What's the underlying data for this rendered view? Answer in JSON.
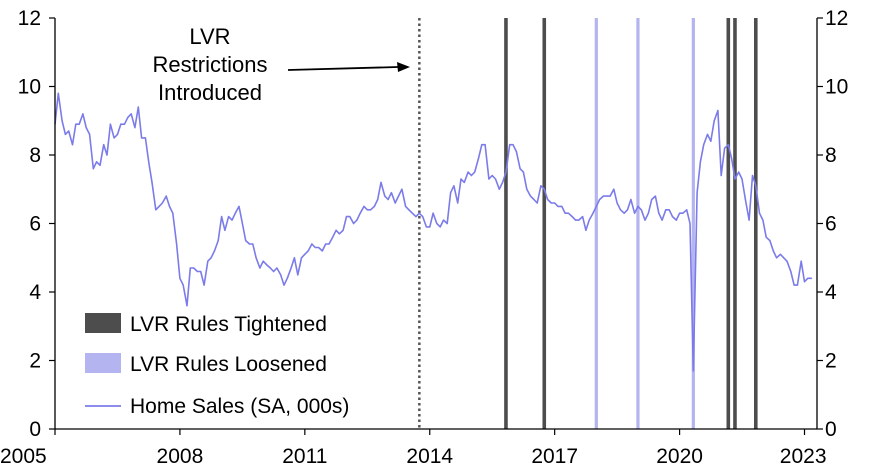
{
  "chart_data": {
    "type": "line",
    "title": "",
    "xlabel": "",
    "ylabel": "",
    "xlim": [
      2005,
      2023.3
    ],
    "ylim": [
      0,
      12
    ],
    "x_ticks": [
      2005,
      2008,
      2011,
      2014,
      2017,
      2020,
      2023
    ],
    "x_tick_labels": [
      "2005",
      "2008",
      "2011",
      "2014",
      "2017",
      "2020",
      "2023"
    ],
    "y_ticks": [
      0,
      2,
      4,
      6,
      8,
      10,
      12
    ],
    "y_tick_labels": [
      "0",
      "2",
      "4",
      "6",
      "8",
      "10",
      "12"
    ],
    "y2_ticks": [
      0,
      2,
      4,
      6,
      8,
      10,
      12
    ],
    "y2_tick_labels": [
      "0",
      "2",
      "4",
      "6",
      "8",
      "10",
      "12"
    ],
    "grid": false,
    "legend_position": "bottom-left",
    "legend": [
      {
        "label": "LVR Rules Tightened",
        "kind": "bar",
        "color": "#4d4d4d"
      },
      {
        "label": "LVR Rules Loosened",
        "kind": "bar",
        "color": "#b4b4f0"
      },
      {
        "label": "Home Sales (SA, 000s)",
        "kind": "line",
        "color": "#7b7bea"
      }
    ],
    "annotation": {
      "lines": [
        "LVR",
        "Restrictions",
        "Introduced"
      ],
      "x": 2013.75,
      "style": "dotted",
      "color": "#555555"
    },
    "tightened_dates": [
      2015.83,
      2016.75,
      2021.17,
      2021.33,
      2021.83
    ],
    "loosened_dates": [
      2018.0,
      2019.0,
      2020.33
    ],
    "series": [
      {
        "name": "Home Sales (SA, 000s)",
        "color": "#7b7bea",
        "x": [
          2005.0,
          2005.08,
          2005.17,
          2005.25,
          2005.33,
          2005.42,
          2005.5,
          2005.58,
          2005.67,
          2005.75,
          2005.83,
          2005.92,
          2006.0,
          2006.08,
          2006.17,
          2006.25,
          2006.33,
          2006.42,
          2006.5,
          2006.58,
          2006.67,
          2006.75,
          2006.83,
          2006.92,
          2007.0,
          2007.08,
          2007.17,
          2007.25,
          2007.33,
          2007.42,
          2007.5,
          2007.58,
          2007.67,
          2007.75,
          2007.83,
          2007.92,
          2008.0,
          2008.08,
          2008.17,
          2008.25,
          2008.33,
          2008.42,
          2008.5,
          2008.58,
          2008.67,
          2008.75,
          2008.83,
          2008.92,
          2009.0,
          2009.08,
          2009.17,
          2009.25,
          2009.33,
          2009.42,
          2009.5,
          2009.58,
          2009.67,
          2009.75,
          2009.83,
          2009.92,
          2010.0,
          2010.08,
          2010.17,
          2010.25,
          2010.33,
          2010.42,
          2010.5,
          2010.58,
          2010.67,
          2010.75,
          2010.83,
          2010.92,
          2011.0,
          2011.08,
          2011.17,
          2011.25,
          2011.33,
          2011.42,
          2011.5,
          2011.58,
          2011.67,
          2011.75,
          2011.83,
          2011.92,
          2012.0,
          2012.08,
          2012.17,
          2012.25,
          2012.33,
          2012.42,
          2012.5,
          2012.58,
          2012.67,
          2012.75,
          2012.83,
          2012.92,
          2013.0,
          2013.08,
          2013.17,
          2013.25,
          2013.33,
          2013.42,
          2013.5,
          2013.58,
          2013.67,
          2013.75,
          2013.83,
          2013.92,
          2014.0,
          2014.08,
          2014.17,
          2014.25,
          2014.33,
          2014.42,
          2014.5,
          2014.58,
          2014.67,
          2014.75,
          2014.83,
          2014.92,
          2015.0,
          2015.08,
          2015.17,
          2015.25,
          2015.33,
          2015.42,
          2015.5,
          2015.58,
          2015.67,
          2015.75,
          2015.83,
          2015.92,
          2016.0,
          2016.08,
          2016.17,
          2016.25,
          2016.33,
          2016.42,
          2016.5,
          2016.58,
          2016.67,
          2016.75,
          2016.83,
          2016.92,
          2017.0,
          2017.08,
          2017.17,
          2017.25,
          2017.33,
          2017.42,
          2017.5,
          2017.58,
          2017.67,
          2017.75,
          2017.83,
          2017.92,
          2018.0,
          2018.08,
          2018.17,
          2018.25,
          2018.33,
          2018.42,
          2018.5,
          2018.58,
          2018.67,
          2018.75,
          2018.83,
          2018.92,
          2019.0,
          2019.08,
          2019.17,
          2019.25,
          2019.33,
          2019.42,
          2019.5,
          2019.58,
          2019.67,
          2019.75,
          2019.83,
          2019.92,
          2020.0,
          2020.08,
          2020.17,
          2020.25,
          2020.33,
          2020.42,
          2020.5,
          2020.58,
          2020.67,
          2020.75,
          2020.83,
          2020.92,
          2021.0,
          2021.08,
          2021.17,
          2021.25,
          2021.33,
          2021.42,
          2021.5,
          2021.58,
          2021.67,
          2021.75,
          2021.83,
          2021.92,
          2022.0,
          2022.08,
          2022.17,
          2022.25,
          2022.33,
          2022.42,
          2022.5,
          2022.58,
          2022.67,
          2022.75,
          2022.83,
          2022.92,
          2023.0,
          2023.08,
          2023.17
        ],
        "values": [
          8.9,
          9.8,
          9.0,
          8.6,
          8.7,
          8.3,
          8.9,
          8.9,
          9.2,
          8.8,
          8.6,
          7.6,
          7.8,
          7.7,
          8.3,
          8.0,
          8.9,
          8.5,
          8.6,
          8.9,
          8.9,
          9.1,
          9.2,
          8.8,
          9.4,
          8.5,
          8.5,
          7.8,
          7.2,
          6.4,
          6.5,
          6.6,
          6.8,
          6.5,
          6.3,
          5.4,
          4.4,
          4.2,
          3.6,
          4.7,
          4.7,
          4.6,
          4.6,
          4.2,
          4.9,
          5.0,
          5.2,
          5.5,
          6.2,
          5.8,
          6.2,
          6.1,
          6.3,
          6.5,
          6.0,
          5.5,
          5.4,
          5.4,
          5.0,
          4.7,
          4.9,
          4.8,
          4.7,
          4.6,
          4.7,
          4.5,
          4.2,
          4.4,
          4.7,
          5.0,
          4.5,
          5.0,
          5.1,
          5.2,
          5.4,
          5.3,
          5.3,
          5.2,
          5.4,
          5.4,
          5.6,
          5.8,
          5.7,
          5.8,
          6.2,
          6.2,
          6.0,
          6.1,
          6.3,
          6.5,
          6.4,
          6.4,
          6.5,
          6.7,
          7.2,
          6.8,
          6.7,
          6.9,
          6.6,
          6.8,
          7.0,
          6.5,
          6.4,
          6.3,
          6.2,
          6.3,
          6.2,
          5.9,
          5.9,
          6.3,
          6.0,
          5.9,
          6.1,
          6.0,
          6.9,
          7.1,
          6.6,
          7.3,
          7.2,
          7.5,
          7.4,
          7.5,
          7.9,
          8.3,
          8.3,
          7.3,
          7.4,
          7.3,
          7.0,
          7.2,
          7.5,
          8.3,
          8.3,
          8.1,
          7.6,
          7.5,
          7.0,
          6.8,
          6.7,
          6.6,
          7.1,
          7.0,
          6.7,
          6.6,
          6.6,
          6.5,
          6.5,
          6.3,
          6.3,
          6.2,
          6.1,
          6.1,
          6.2,
          5.8,
          6.1,
          6.3,
          6.5,
          6.7,
          6.8,
          6.8,
          6.8,
          7.0,
          6.6,
          6.4,
          6.3,
          6.4,
          6.7,
          6.3,
          6.5,
          6.4,
          6.1,
          6.3,
          6.7,
          6.8,
          6.3,
          6.1,
          6.4,
          6.4,
          6.2,
          6.1,
          6.3,
          6.3,
          6.4,
          6.0,
          1.7,
          6.9,
          7.8,
          8.3,
          8.6,
          8.4,
          9.0,
          9.3,
          7.4,
          8.2,
          8.3,
          7.9,
          7.3,
          7.5,
          7.3,
          6.7,
          6.1,
          7.4,
          7.1,
          6.3,
          6.1,
          5.6,
          5.5,
          5.2,
          5.0,
          5.1,
          5.0,
          4.9,
          4.6,
          4.2,
          4.2,
          4.9,
          4.3,
          4.4,
          4.4
        ]
      }
    ]
  }
}
